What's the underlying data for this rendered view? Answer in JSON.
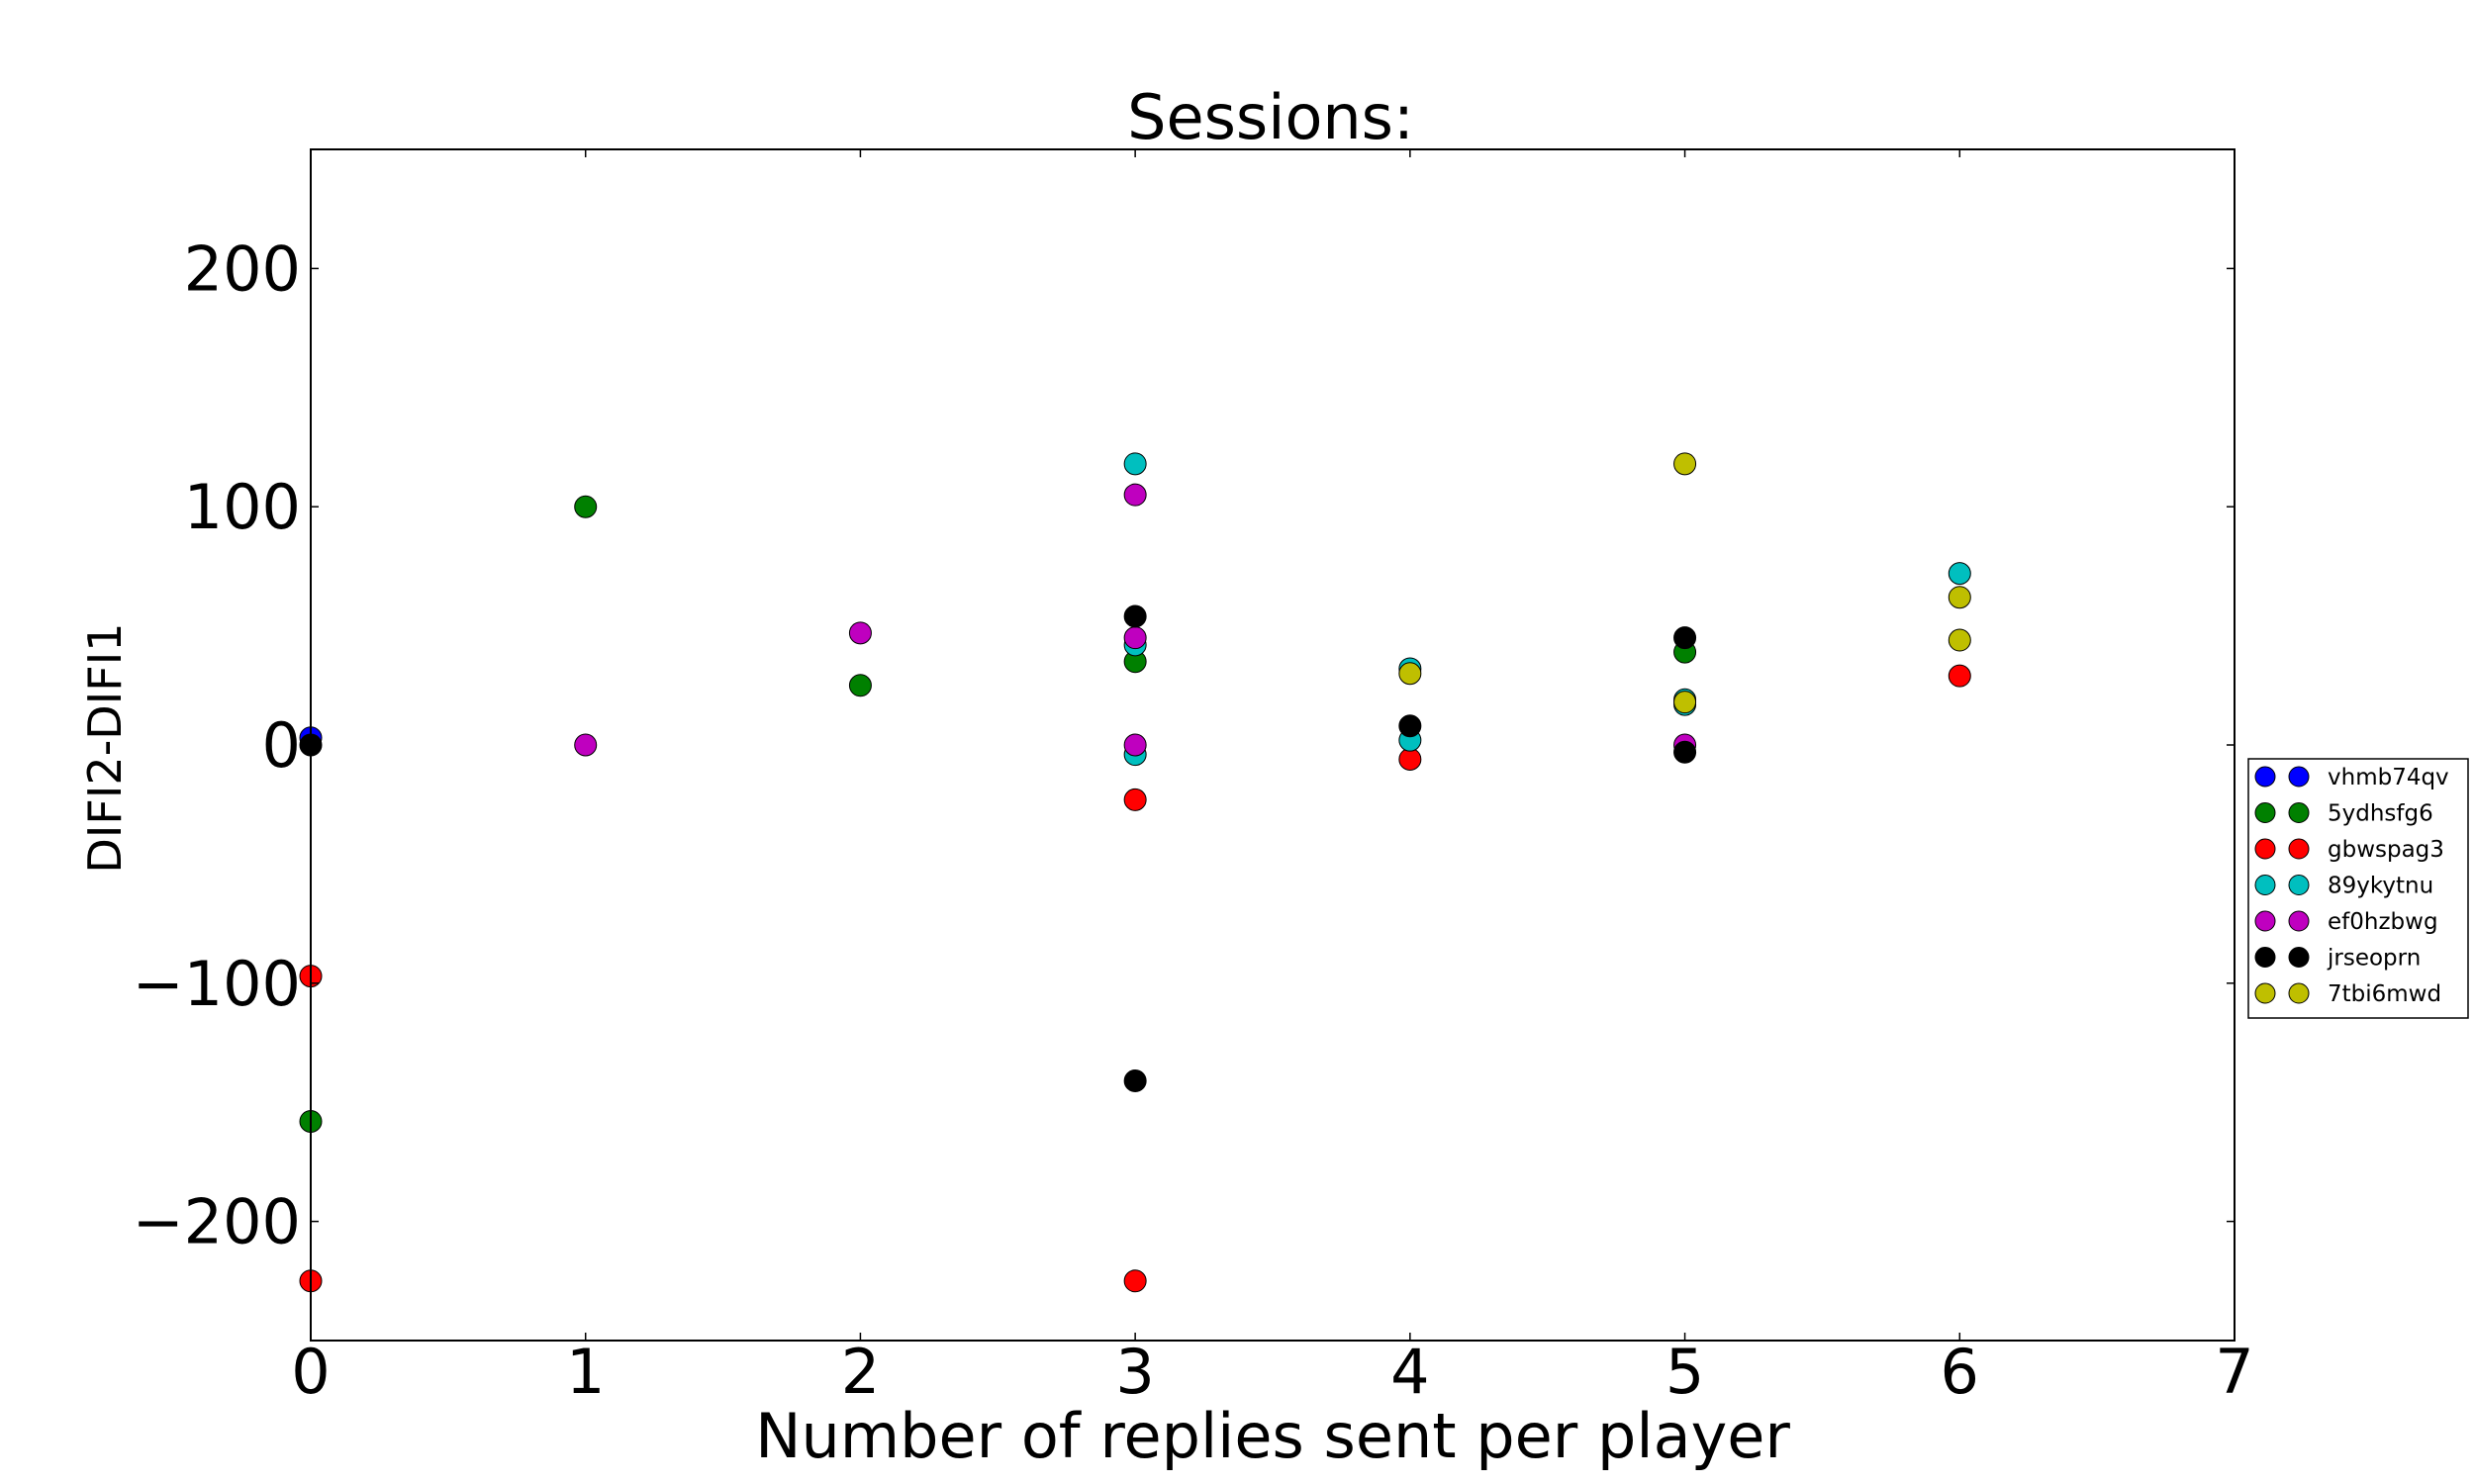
{
  "chart_data": {
    "type": "scatter",
    "title": "Sessions:",
    "xlabel": "Number of replies sent per player",
    "ylabel": "DIFI2-DIFI1",
    "xlim": [
      0,
      7
    ],
    "ylim": [
      -250,
      250
    ],
    "xticks": [
      "0",
      "1",
      "2",
      "3",
      "4",
      "5",
      "6",
      "7"
    ],
    "yticks": [
      "−200",
      "−100",
      "0",
      "100",
      "200"
    ],
    "xtick_values": [
      0,
      1,
      2,
      3,
      4,
      5,
      6,
      7
    ],
    "ytick_values": [
      -200,
      -100,
      0,
      100,
      200
    ],
    "grid": false,
    "legend_position": "right",
    "series": [
      {
        "name": "vhmb74qv",
        "color": "#0000ff",
        "points": [
          [
            0,
            3
          ]
        ]
      },
      {
        "name": "5ydhsfg6",
        "color": "#008000",
        "points": [
          [
            0,
            -158
          ],
          [
            1,
            100
          ],
          [
            2,
            25
          ],
          [
            3,
            35
          ],
          [
            5,
            39
          ]
        ]
      },
      {
        "name": "gbwspag3",
        "color": "#ff0000",
        "points": [
          [
            0,
            -97
          ],
          [
            0,
            -225
          ],
          [
            3,
            -23
          ],
          [
            3,
            -225
          ],
          [
            4,
            -6
          ],
          [
            6,
            29
          ]
        ]
      },
      {
        "name": "89ykytnu",
        "color": "#00bfbf",
        "points": [
          [
            3,
            118
          ],
          [
            3,
            42
          ],
          [
            3,
            -4
          ],
          [
            4,
            32
          ],
          [
            4,
            2
          ],
          [
            5,
            19
          ],
          [
            5,
            17
          ],
          [
            6,
            72
          ]
        ]
      },
      {
        "name": "ef0hzbwg",
        "color": "#bf00bf",
        "points": [
          [
            1,
            0
          ],
          [
            2,
            47
          ],
          [
            3,
            105
          ],
          [
            3,
            45
          ],
          [
            3,
            0
          ],
          [
            5,
            0
          ]
        ]
      },
      {
        "name": "jrseoprn",
        "color": "#000000",
        "points": [
          [
            0,
            0
          ],
          [
            3,
            54
          ],
          [
            3,
            -141
          ],
          [
            4,
            8
          ],
          [
            5,
            45
          ],
          [
            5,
            -3
          ]
        ]
      },
      {
        "name": "7tbi6mwd",
        "color": "#bfbf00",
        "points": [
          [
            4,
            30
          ],
          [
            5,
            118
          ],
          [
            5,
            18
          ],
          [
            6,
            62
          ],
          [
            6,
            44
          ]
        ]
      }
    ]
  }
}
